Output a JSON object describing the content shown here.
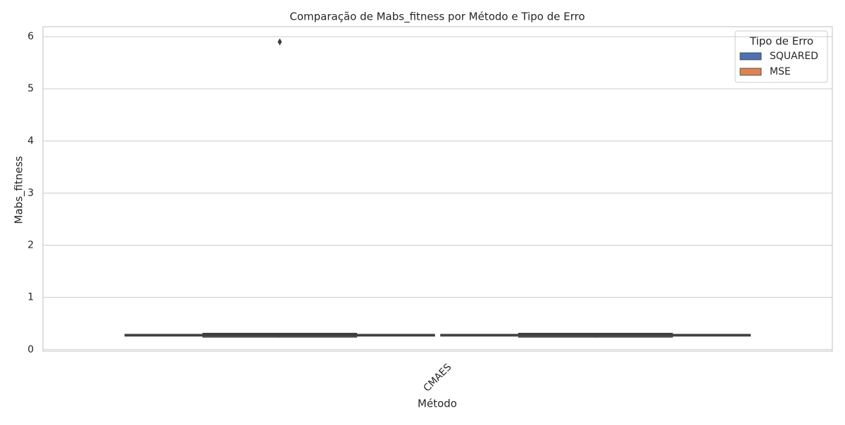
{
  "chart_data": {
    "type": "box",
    "title": "Comparação de Mabs_fitness por Método e Tipo de Erro",
    "xlabel": "Método",
    "ylabel": "Mabs_fitness",
    "categories": [
      "CMAES"
    ],
    "legend_title": "Tipo de Erro",
    "legend": "upper right",
    "series": [
      {
        "name": "SQUARED",
        "color": "#4c72b0",
        "values": [
          0.24,
          0.26,
          0.28,
          0.29,
          0.31
        ],
        "fliers": [
          5.9
        ]
      },
      {
        "name": "MSE",
        "color": "#dd8452",
        "values": [
          0.24,
          0.26,
          0.28,
          0.29,
          0.31
        ],
        "fliers": []
      }
    ],
    "ylim": [
      -0.03,
      6.19
    ],
    "yticks": [
      0,
      1,
      2,
      3,
      4,
      5,
      6
    ],
    "grid": true
  }
}
